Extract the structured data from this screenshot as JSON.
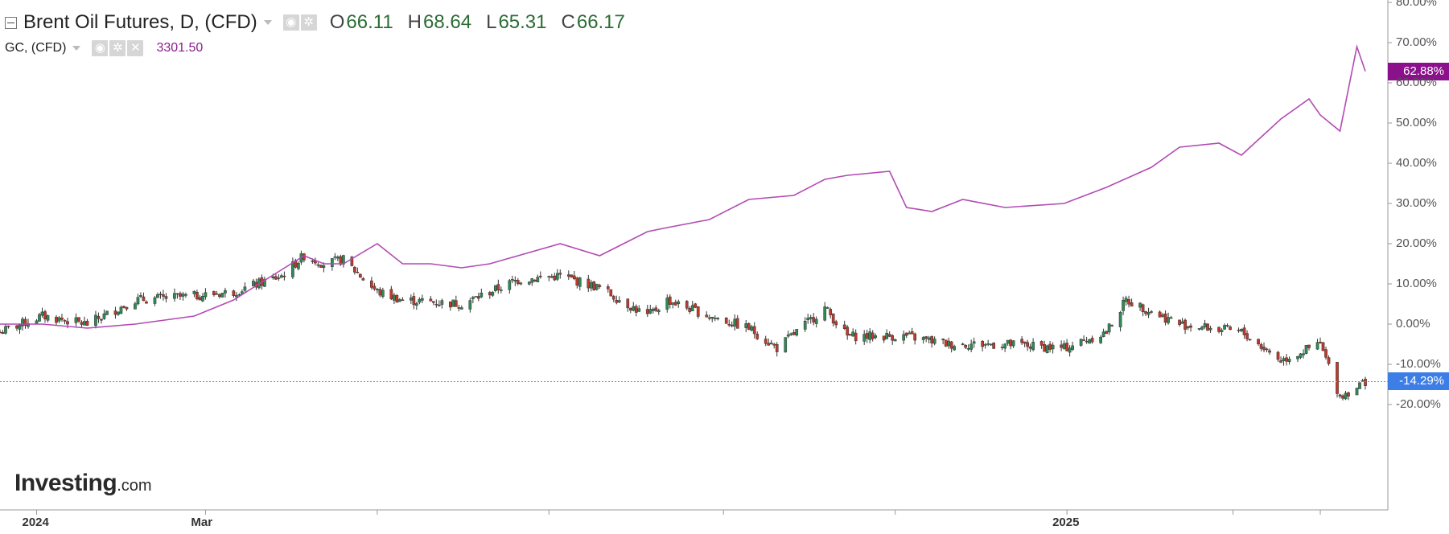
{
  "instrument": {
    "title": "Brent Oil Futures, D, (CFD)",
    "open_label": "O",
    "open": "66.11",
    "high_label": "H",
    "high": "68.64",
    "low_label": "L",
    "low": "65.31",
    "close_label": "C",
    "close": "66.17"
  },
  "overlay": {
    "title": "GC, (CFD)",
    "price": "3301.50"
  },
  "tags": {
    "gc_pct": "62.88%",
    "brent_pct": "-14.29%"
  },
  "brand": {
    "name": "Investing",
    "domain": ".com"
  },
  "colors": {
    "up": "#2e8b57",
    "down": "#c0392b",
    "gold_line": "#b34ab3",
    "gold_tag": "#8b108b",
    "brent_tag": "#3d7de6",
    "grid_line": "#6b8fe8"
  },
  "icons": [
    "collapse-icon",
    "eye-icon",
    "gear-icon",
    "close-icon",
    "caret-down-icon"
  ],
  "chart_data": {
    "type": "line",
    "y_axis": {
      "unit": "percent change",
      "ylim": [
        -30,
        80
      ],
      "ticks": [
        "80.00%",
        "70.00%",
        "60.00%",
        "50.00%",
        "40.00%",
        "30.00%",
        "20.00%",
        "10.00%",
        "0.00%",
        "-10.00%",
        "-20.00%"
      ],
      "tick_values": [
        80,
        70,
        60,
        50,
        40,
        30,
        20,
        10,
        0,
        -10,
        -20
      ]
    },
    "x_axis": {
      "labels": [
        "2024",
        "Mar",
        "2025"
      ],
      "label_dates": [
        "2024-01-01",
        "2024-03-01",
        "2025-01-01"
      ],
      "xlim": [
        "2023-12-19",
        "2025-04-17"
      ]
    },
    "grid": false,
    "current_level_line": -14.29,
    "series": [
      {
        "name": "Brent Oil Futures, D, (CFD)",
        "style": "candlestick",
        "x": [
          "2023-12-19",
          "2024-01-03",
          "2024-01-19",
          "2024-02-05",
          "2024-02-26",
          "2024-03-11",
          "2024-03-28",
          "2024-04-05",
          "2024-04-12",
          "2024-04-19",
          "2024-05-01",
          "2024-05-10",
          "2024-05-31",
          "2024-06-10",
          "2024-06-20",
          "2024-07-05",
          "2024-07-19",
          "2024-08-05",
          "2024-08-12",
          "2024-08-27",
          "2024-09-10",
          "2024-09-20",
          "2024-10-07",
          "2024-10-15",
          "2024-11-05",
          "2024-11-20",
          "2024-12-10",
          "2024-12-31",
          "2025-01-15",
          "2025-01-22",
          "2025-02-10",
          "2025-03-04",
          "2025-03-18",
          "2025-04-01",
          "2025-04-08",
          "2025-04-17"
        ],
        "values": [
          -2,
          2,
          0,
          6,
          7,
          8,
          12,
          17,
          15,
          16,
          8,
          6,
          5,
          8,
          11,
          12,
          9,
          2,
          6,
          2,
          -1,
          -6,
          4,
          -3,
          -3,
          -5,
          -5,
          -6,
          -2,
          6,
          0,
          -2,
          -9,
          -5,
          -18,
          -14.29
        ]
      },
      {
        "name": "GC, (CFD)",
        "style": "line",
        "x": [
          "2023-12-19",
          "2024-01-03",
          "2024-01-19",
          "2024-02-05",
          "2024-02-26",
          "2024-03-11",
          "2024-03-20",
          "2024-04-05",
          "2024-04-12",
          "2024-04-19",
          "2024-05-01",
          "2024-05-10",
          "2024-05-20",
          "2024-05-31",
          "2024-06-10",
          "2024-06-20",
          "2024-07-05",
          "2024-07-19",
          "2024-08-05",
          "2024-08-12",
          "2024-08-27",
          "2024-09-10",
          "2024-09-26",
          "2024-10-07",
          "2024-10-15",
          "2024-10-30",
          "2024-11-05",
          "2024-11-14",
          "2024-11-25",
          "2024-12-10",
          "2024-12-31",
          "2025-01-15",
          "2025-01-31",
          "2025-02-10",
          "2025-02-24",
          "2025-03-04",
          "2025-03-18",
          "2025-03-28",
          "2025-04-01",
          "2025-04-08",
          "2025-04-14",
          "2025-04-17"
        ],
        "values": [
          0,
          0,
          -1,
          0,
          2,
          6,
          10,
          17,
          15,
          15,
          20,
          15,
          15,
          14,
          15,
          17,
          20,
          17,
          23,
          24,
          26,
          31,
          32,
          36,
          37,
          38,
          29,
          28,
          31,
          29,
          30,
          34,
          39,
          44,
          45,
          42,
          51,
          56,
          52,
          48,
          69,
          62.88
        ]
      }
    ]
  }
}
